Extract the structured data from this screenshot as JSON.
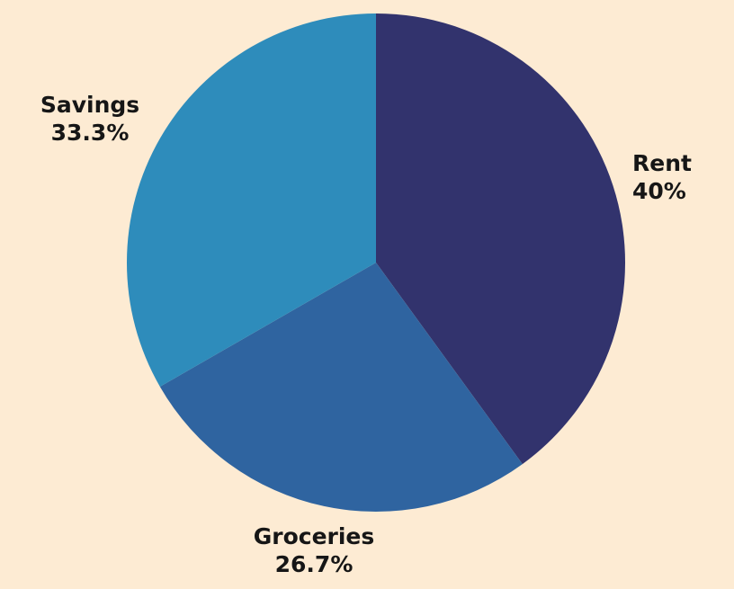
{
  "background_color": "#FDEBD3",
  "label_text_color": "#161616",
  "chart_data": {
    "type": "pie",
    "title": "",
    "labels": [
      "Rent",
      "Groceries",
      "Savings"
    ],
    "values": [
      40,
      26.7,
      33.3
    ],
    "percent_labels": [
      "40%",
      "26.7%",
      "33.3%"
    ],
    "colors": [
      "#32336D",
      "#2F64A0",
      "#2E8CBB"
    ],
    "start_angle_deg": 0,
    "direction": "clockwise",
    "legend": "none",
    "label_position": "outside",
    "annotations": [
      "Rent 40%",
      "Groceries 26.7%",
      "Savings 33.3%"
    ]
  }
}
